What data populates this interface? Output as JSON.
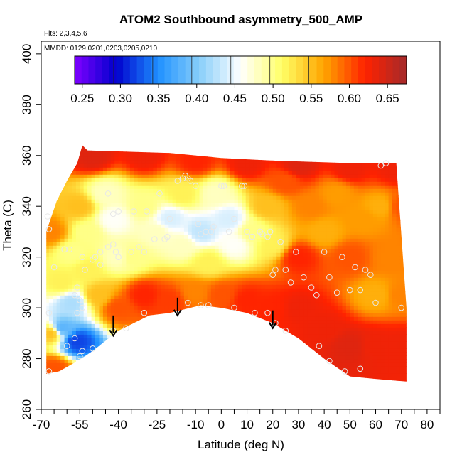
{
  "chart_data": {
    "type": "heatmap",
    "title": "ATOM2 Southbound asymmetry_500_AMP",
    "flights_note": "Flts: 2,3,4,5,6",
    "dates_note": "MMDD: 0129,0201,0203,0205,0210",
    "xlabel": "Latitude (deg N)",
    "ylabel": "Theta (C)",
    "xlim": [
      -70,
      85
    ],
    "ylim": [
      260,
      405
    ],
    "x_ticks": [
      -70,
      -55,
      -40,
      -25,
      -10,
      0,
      10,
      20,
      30,
      40,
      50,
      60,
      70,
      80
    ],
    "x_tick_labels": [
      "-70",
      "-55",
      "-40",
      "-25",
      "-10",
      "0",
      "10",
      "20",
      "30",
      "40",
      "50",
      "60",
      "70",
      "80"
    ],
    "x_minor_ticks": [
      -65,
      -60,
      -50,
      -45,
      -35,
      -30,
      -20,
      -15,
      -5,
      5,
      15,
      25,
      35,
      45,
      55,
      65,
      75,
      85
    ],
    "y_ticks": [
      260,
      280,
      300,
      320,
      340,
      360,
      380,
      400
    ],
    "y_tick_labels": [
      "260",
      "280",
      "300",
      "320",
      "340",
      "360",
      "380",
      "400"
    ],
    "colorbar": {
      "range": [
        0.24,
        0.675
      ],
      "ticks": [
        0.25,
        0.3,
        0.35,
        0.4,
        0.45,
        0.5,
        0.55,
        0.6,
        0.65
      ],
      "tick_labels": [
        "0.25",
        "0.30",
        "0.35",
        "0.40",
        "0.45",
        "0.50",
        "0.55",
        "0.60",
        "0.65"
      ],
      "colors": [
        "#7f00ff",
        "#0000cd",
        "#1e90ff",
        "#87cefa",
        "#ffffff",
        "#ffff66",
        "#ffa500",
        "#ff2200",
        "#a52a2a"
      ]
    },
    "field_top_boundary": [
      {
        "x": -68,
        "y": 330
      },
      {
        "x": -64,
        "y": 342
      },
      {
        "x": -60,
        "y": 350
      },
      {
        "x": -56,
        "y": 357
      },
      {
        "x": -54,
        "y": 364
      },
      {
        "x": -52,
        "y": 362
      },
      {
        "x": -20,
        "y": 361
      },
      {
        "x": 0,
        "y": 359
      },
      {
        "x": 20,
        "y": 358
      },
      {
        "x": 50,
        "y": 357
      },
      {
        "x": 68,
        "y": 357
      },
      {
        "x": 72,
        "y": 300
      }
    ],
    "field_bottom_boundary": [
      {
        "x": 72,
        "y": 271
      },
      {
        "x": 60,
        "y": 272
      },
      {
        "x": 50,
        "y": 273
      },
      {
        "x": 40,
        "y": 280
      },
      {
        "x": 30,
        "y": 288
      },
      {
        "x": 20,
        "y": 294
      },
      {
        "x": 10,
        "y": 298
      },
      {
        "x": 0,
        "y": 300
      },
      {
        "x": -8,
        "y": 301
      },
      {
        "x": -20,
        "y": 298
      },
      {
        "x": -28,
        "y": 297
      },
      {
        "x": -40,
        "y": 291
      },
      {
        "x": -50,
        "y": 283
      },
      {
        "x": -56,
        "y": 279
      },
      {
        "x": -63,
        "y": 275
      },
      {
        "x": -68,
        "y": 274
      }
    ],
    "field_anchors": [
      {
        "x": -66,
        "y": 290,
        "v": 0.55
      },
      {
        "x": -62,
        "y": 292,
        "v": 0.38
      },
      {
        "x": -56,
        "y": 287,
        "v": 0.32
      },
      {
        "x": -58,
        "y": 302,
        "v": 0.42
      },
      {
        "x": -62,
        "y": 310,
        "v": 0.52
      },
      {
        "x": -66,
        "y": 330,
        "v": 0.58
      },
      {
        "x": -58,
        "y": 322,
        "v": 0.5
      },
      {
        "x": -55,
        "y": 340,
        "v": 0.55
      },
      {
        "x": -52,
        "y": 330,
        "v": 0.5
      },
      {
        "x": -45,
        "y": 345,
        "v": 0.48
      },
      {
        "x": -42,
        "y": 335,
        "v": 0.46
      },
      {
        "x": -35,
        "y": 320,
        "v": 0.5
      },
      {
        "x": -30,
        "y": 340,
        "v": 0.5
      },
      {
        "x": -25,
        "y": 330,
        "v": 0.48
      },
      {
        "x": -20,
        "y": 335,
        "v": 0.44
      },
      {
        "x": -15,
        "y": 345,
        "v": 0.52
      },
      {
        "x": -15,
        "y": 325,
        "v": 0.48
      },
      {
        "x": -8,
        "y": 330,
        "v": 0.43
      },
      {
        "x": -2,
        "y": 345,
        "v": 0.48
      },
      {
        "x": 3,
        "y": 335,
        "v": 0.44
      },
      {
        "x": 5,
        "y": 325,
        "v": 0.46
      },
      {
        "x": 12,
        "y": 330,
        "v": 0.5
      },
      {
        "x": 18,
        "y": 340,
        "v": 0.55
      },
      {
        "x": 20,
        "y": 325,
        "v": 0.52
      },
      {
        "x": 25,
        "y": 350,
        "v": 0.6
      },
      {
        "x": 30,
        "y": 320,
        "v": 0.62
      },
      {
        "x": 35,
        "y": 340,
        "v": 0.58
      },
      {
        "x": 40,
        "y": 330,
        "v": 0.56
      },
      {
        "x": 45,
        "y": 345,
        "v": 0.57
      },
      {
        "x": 50,
        "y": 320,
        "v": 0.6
      },
      {
        "x": 55,
        "y": 335,
        "v": 0.57
      },
      {
        "x": 62,
        "y": 340,
        "v": 0.56
      },
      {
        "x": 66,
        "y": 320,
        "v": 0.58
      },
      {
        "x": 70,
        "y": 340,
        "v": 0.6
      },
      {
        "x": -40,
        "y": 300,
        "v": 0.6
      },
      {
        "x": -30,
        "y": 305,
        "v": 0.62
      },
      {
        "x": -20,
        "y": 303,
        "v": 0.61
      },
      {
        "x": -10,
        "y": 306,
        "v": 0.58
      },
      {
        "x": 0,
        "y": 305,
        "v": 0.6
      },
      {
        "x": 10,
        "y": 303,
        "v": 0.62
      },
      {
        "x": 20,
        "y": 300,
        "v": 0.62
      },
      {
        "x": 30,
        "y": 300,
        "v": 0.63
      },
      {
        "x": 40,
        "y": 292,
        "v": 0.63
      },
      {
        "x": 50,
        "y": 285,
        "v": 0.64
      },
      {
        "x": 60,
        "y": 285,
        "v": 0.63
      },
      {
        "x": 70,
        "y": 285,
        "v": 0.63
      },
      {
        "x": 60,
        "y": 305,
        "v": 0.56
      },
      {
        "x": 70,
        "y": 305,
        "v": 0.58
      },
      {
        "x": -50,
        "y": 360,
        "v": 0.64
      },
      {
        "x": -30,
        "y": 360,
        "v": 0.63
      },
      {
        "x": -10,
        "y": 358,
        "v": 0.62
      },
      {
        "x": 10,
        "y": 357,
        "v": 0.63
      },
      {
        "x": 30,
        "y": 356,
        "v": 0.64
      },
      {
        "x": 50,
        "y": 355,
        "v": 0.63
      },
      {
        "x": 68,
        "y": 355,
        "v": 0.63
      },
      {
        "x": -48,
        "y": 305,
        "v": 0.55
      },
      {
        "x": -65,
        "y": 276,
        "v": 0.6
      },
      {
        "x": -52,
        "y": 315,
        "v": 0.52
      },
      {
        "x": -40,
        "y": 320,
        "v": 0.48
      },
      {
        "x": -5,
        "y": 318,
        "v": 0.52
      }
    ],
    "arrows": [
      {
        "x": -42,
        "y_top": 297,
        "y_bottom": 289
      },
      {
        "x": -17,
        "y_top": 304,
        "y_bottom": 297
      },
      {
        "x": 20,
        "y_top": 299,
        "y_bottom": 292
      }
    ],
    "sample_points": [
      {
        "x": -67.5,
        "y": 336
      },
      {
        "x": -67,
        "y": 331
      },
      {
        "x": -65,
        "y": 316
      },
      {
        "x": -61,
        "y": 323
      },
      {
        "x": -59,
        "y": 323
      },
      {
        "x": -57,
        "y": 305
      },
      {
        "x": -56,
        "y": 308
      },
      {
        "x": -55,
        "y": 303
      },
      {
        "x": -54,
        "y": 300
      },
      {
        "x": -56,
        "y": 298
      },
      {
        "x": -67,
        "y": 298
      },
      {
        "x": -67,
        "y": 275
      },
      {
        "x": -55,
        "y": 281
      },
      {
        "x": -54,
        "y": 283
      },
      {
        "x": -47,
        "y": 317
      },
      {
        "x": -53,
        "y": 315
      },
      {
        "x": -54,
        "y": 320
      },
      {
        "x": -50,
        "y": 319
      },
      {
        "x": -49,
        "y": 320
      },
      {
        "x": -47,
        "y": 322
      },
      {
        "x": -44,
        "y": 324
      },
      {
        "x": -42,
        "y": 325
      },
      {
        "x": -41,
        "y": 322
      },
      {
        "x": -40,
        "y": 320
      },
      {
        "x": -44,
        "y": 345
      },
      {
        "x": -42,
        "y": 337
      },
      {
        "x": -40,
        "y": 338
      },
      {
        "x": -35,
        "y": 322
      },
      {
        "x": -34,
        "y": 338
      },
      {
        "x": -32,
        "y": 324
      },
      {
        "x": -30,
        "y": 322
      },
      {
        "x": -29,
        "y": 338
      },
      {
        "x": -26,
        "y": 327
      },
      {
        "x": -24,
        "y": 345
      },
      {
        "x": -22,
        "y": 327
      },
      {
        "x": -21,
        "y": 328
      },
      {
        "x": -20,
        "y": 335
      },
      {
        "x": -17,
        "y": 350
      },
      {
        "x": -15,
        "y": 351
      },
      {
        "x": -14,
        "y": 352
      },
      {
        "x": -13,
        "y": 351
      },
      {
        "x": -12,
        "y": 350
      },
      {
        "x": -10,
        "y": 348
      },
      {
        "x": -9,
        "y": 333
      },
      {
        "x": -8,
        "y": 329
      },
      {
        "x": -6,
        "y": 330
      },
      {
        "x": -4,
        "y": 330
      },
      {
        "x": -3,
        "y": 332
      },
      {
        "x": 0,
        "y": 348
      },
      {
        "x": 1,
        "y": 348
      },
      {
        "x": 3,
        "y": 330
      },
      {
        "x": 5,
        "y": 335
      },
      {
        "x": 8,
        "y": 348
      },
      {
        "x": 9,
        "y": 348
      },
      {
        "x": 10,
        "y": 330
      },
      {
        "x": 12,
        "y": 328
      },
      {
        "x": 15,
        "y": 330
      },
      {
        "x": 16,
        "y": 329
      },
      {
        "x": 18,
        "y": 328
      },
      {
        "x": 19,
        "y": 330
      },
      {
        "x": 20,
        "y": 313
      },
      {
        "x": 21,
        "y": 315
      },
      {
        "x": 23,
        "y": 326
      },
      {
        "x": 25,
        "y": 315
      },
      {
        "x": 27,
        "y": 310
      },
      {
        "x": 29,
        "y": 322
      },
      {
        "x": 32,
        "y": 312
      },
      {
        "x": 35,
        "y": 308
      },
      {
        "x": 37,
        "y": 305
      },
      {
        "x": 40,
        "y": 322
      },
      {
        "x": 42,
        "y": 312
      },
      {
        "x": 45,
        "y": 306
      },
      {
        "x": 47,
        "y": 320
      },
      {
        "x": 50,
        "y": 307
      },
      {
        "x": 52,
        "y": 316
      },
      {
        "x": 54,
        "y": 307
      },
      {
        "x": 56,
        "y": 315
      },
      {
        "x": 58,
        "y": 313
      },
      {
        "x": 60,
        "y": 302
      },
      {
        "x": 62,
        "y": 356
      },
      {
        "x": 64,
        "y": 357
      },
      {
        "x": 70,
        "y": 300
      },
      {
        "x": -8,
        "y": 301
      },
      {
        "x": -13,
        "y": 302
      },
      {
        "x": -5,
        "y": 301
      },
      {
        "x": 5,
        "y": 300
      },
      {
        "x": 13,
        "y": 298
      },
      {
        "x": 18,
        "y": 298
      },
      {
        "x": 21,
        "y": 294
      },
      {
        "x": 25,
        "y": 291
      },
      {
        "x": 38,
        "y": 285
      },
      {
        "x": 42,
        "y": 279
      },
      {
        "x": 48,
        "y": 275
      },
      {
        "x": 54,
        "y": 276
      },
      {
        "x": -30,
        "y": 298
      },
      {
        "x": -42,
        "y": 291
      },
      {
        "x": -37,
        "y": 292
      },
      {
        "x": -50,
        "y": 284
      },
      {
        "x": -60,
        "y": 285
      },
      {
        "x": -57,
        "y": 288
      }
    ]
  }
}
